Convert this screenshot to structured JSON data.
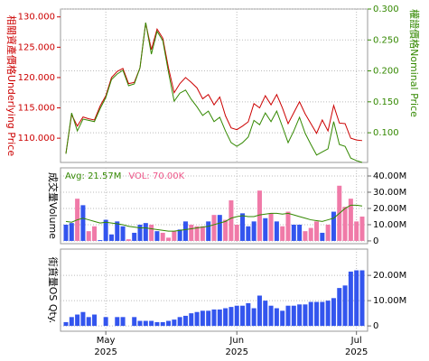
{
  "chart_data": [
    {
      "type": "line",
      "ylabel": "相關資產價格Underlying Price",
      "y2label": "權證價格Nominal Price",
      "ylabel_color": "#cc0000",
      "y2label_color": "#338800",
      "ylim": [
        106.0,
        131.3
      ],
      "yticks": [
        {
          "value": 110,
          "label": "110.000"
        },
        {
          "value": 115,
          "label": "115.000"
        },
        {
          "value": 120,
          "label": "120.000"
        },
        {
          "value": 125,
          "label": "125.000"
        },
        {
          "value": 130,
          "label": "130.000"
        }
      ],
      "y2lim": [
        0.052,
        0.3
      ],
      "y2ticks": [
        {
          "value": 0.1,
          "label": "0.100"
        },
        {
          "value": 0.15,
          "label": "0.150"
        },
        {
          "value": 0.2,
          "label": "0.200"
        },
        {
          "value": 0.25,
          "label": "0.250"
        },
        {
          "value": 0.3,
          "label": "0.300"
        }
      ],
      "grid": true,
      "series": [
        {
          "color": "#cc0000",
          "axis": "y",
          "values": [
            107.5,
            113.9,
            112,
            113.5,
            113.2,
            113,
            115.3,
            117,
            120,
            121,
            121.5,
            119,
            119.2,
            121.6,
            129,
            124.6,
            128,
            126.5,
            121.6,
            117.5,
            119,
            120,
            119.2,
            118.3,
            116.5,
            117.2,
            115.5,
            116.8,
            113.7,
            111.7,
            111.4,
            112,
            112.7,
            115.7,
            115,
            117,
            115.5,
            117.2,
            115,
            112.4,
            114.2,
            116,
            114,
            112.4,
            110.8,
            113,
            111.2,
            115.4,
            112.5,
            112.4,
            110,
            109.7,
            109.6
          ]
        },
        {
          "color": "#338800",
          "axis": "y2",
          "values": [
            0.066,
            0.132,
            0.103,
            0.122,
            0.12,
            0.118,
            0.139,
            0.157,
            0.186,
            0.195,
            0.201,
            0.176,
            0.179,
            0.205,
            0.278,
            0.227,
            0.264,
            0.249,
            0.198,
            0.151,
            0.164,
            0.169,
            0.154,
            0.142,
            0.128,
            0.135,
            0.118,
            0.125,
            0.103,
            0.084,
            0.078,
            0.084,
            0.093,
            0.12,
            0.113,
            0.132,
            0.118,
            0.135,
            0.11,
            0.084,
            0.103,
            0.125,
            0.099,
            0.081,
            0.064,
            0.069,
            0.074,
            0.118,
            0.081,
            0.078,
            0.059,
            0.055,
            0.052
          ]
        }
      ]
    },
    {
      "type": "bar",
      "ylabel": "成交量Volume",
      "ylabel_color": "#000000",
      "annotations": [
        "Avg: 21.57M",
        "VOL: 70.00K"
      ],
      "annotation_colors": [
        "#338800",
        "#ee5588"
      ],
      "ylim": [
        -1700000,
        45000000
      ],
      "yticks": [
        0,
        {
          "value": 10000000,
          "label": "10.00M"
        },
        {
          "value": 20000000,
          "label": "20.00M"
        },
        {
          "value": 30000000,
          "label": "30.00M"
        },
        {
          "value": 40000000,
          "label": "40.00M"
        }
      ],
      "grid": true,
      "up_color": "#3355ee",
      "down_color": "#f07aa8",
      "values": [
        10000000,
        11000000,
        26000000,
        22000000,
        6000000,
        9000000,
        500000,
        13000000,
        4000000,
        12000000,
        9000000,
        1000000,
        5000000,
        10000000,
        11000000,
        10000000,
        6000000,
        5000000,
        2000000,
        6000000,
        7000000,
        12000000,
        10000000,
        9000000,
        9000000,
        12000000,
        16000000,
        16000000,
        13000000,
        25000000,
        10000000,
        17000000,
        9000000,
        12000000,
        31000000,
        14000000,
        17000000,
        12000000,
        9000000,
        18000000,
        10000000,
        10000000,
        6000000,
        8000000,
        12000000,
        5000000,
        10000000,
        18000000,
        34000000,
        21000000,
        26000000,
        12000000,
        15000000
      ],
      "average": {
        "color": "#338800",
        "values": [
          12000000,
          11500000,
          13000000,
          14000000,
          13000000,
          12000000,
          11000000,
          11500000,
          11000000,
          10500000,
          10000000,
          9000000,
          8500000,
          8000000,
          8000000,
          7500000,
          7000000,
          6500000,
          6000000,
          6000000,
          6500000,
          7000000,
          7500000,
          8000000,
          8500000,
          9000000,
          10000000,
          11000000,
          12000000,
          14000000,
          15000000,
          15500000,
          15000000,
          15000000,
          16000000,
          16500000,
          17000000,
          17000000,
          16500000,
          17000000,
          16000000,
          15000000,
          14000000,
          13000000,
          12500000,
          12000000,
          13000000,
          14000000,
          17000000,
          20000000,
          22000000,
          22000000,
          21500000
        ]
      }
    },
    {
      "type": "bar",
      "ylabel": "街貨量OS Qty.",
      "ylabel_color": "#000000",
      "ylim": [
        -2100000,
        30400000
      ],
      "yticks": [
        0,
        {
          "value": 10000000,
          "label": "10.00M"
        },
        {
          "value": 20000000,
          "label": "20.00M"
        }
      ],
      "grid": true,
      "color": "#3355ee",
      "values": [
        1500000,
        3500000,
        4500000,
        5500000,
        3500000,
        4500000,
        0,
        3500000,
        0,
        3500000,
        3500000,
        0,
        3500000,
        2000000,
        2000000,
        2000000,
        1500000,
        1500000,
        2000000,
        2500000,
        3500000,
        4000000,
        5000000,
        5500000,
        6000000,
        6000000,
        6500000,
        6500000,
        7000000,
        7500000,
        8000000,
        8000000,
        9000000,
        7000000,
        12000000,
        10000000,
        8000000,
        7000000,
        6000000,
        8000000,
        8000000,
        8500000,
        8500000,
        9500000,
        9500000,
        9500000,
        10000000,
        11000000,
        15000000,
        16000000,
        21500000,
        22000000,
        22000000
      ],
      "categories": [
        null,
        null,
        null,
        null,
        null,
        null,
        null,
        null,
        null,
        null,
        null,
        null,
        null,
        null,
        null,
        null,
        null,
        null,
        null,
        null,
        null,
        null,
        null,
        null,
        null,
        null,
        null,
        null,
        null,
        null,
        null,
        null,
        null,
        null,
        null,
        null,
        null,
        null,
        null,
        null,
        null,
        null,
        null,
        null,
        null,
        null,
        null,
        null,
        null,
        null,
        null,
        null,
        null
      ],
      "xticks": [
        {
          "value": 7,
          "label": "May",
          "year": "2025"
        },
        {
          "value": 30,
          "label": "Jun",
          "year": "2025"
        },
        {
          "value": 51,
          "label": "Jul",
          "year": "2025"
        }
      ]
    }
  ]
}
